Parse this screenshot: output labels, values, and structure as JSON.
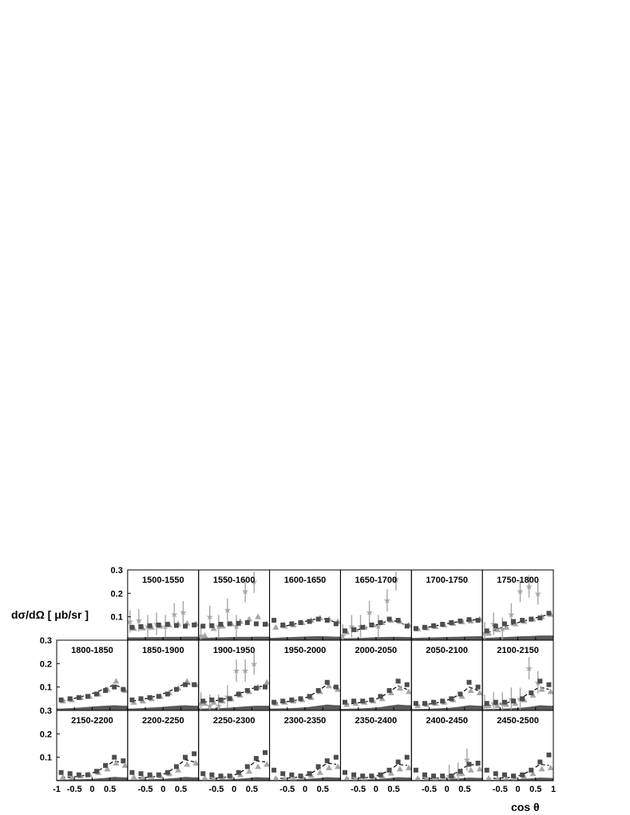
{
  "chart_data": {
    "type": "scatter",
    "xlabel": "cos θ",
    "ylabel": "dσ/dΩ [ μb/sr ]",
    "xlim": [
      -1,
      1
    ],
    "ylim": [
      0,
      0.3
    ],
    "x_ticks": [
      "-1",
      "-0.5",
      "0",
      "0.5",
      "1"
    ],
    "y_ticks": [
      "0.1",
      "0.2",
      "0.3"
    ],
    "x": [
      -0.875,
      -0.625,
      -0.375,
      -0.125,
      0.125,
      0.375,
      0.625,
      0.875
    ],
    "panels": [
      {
        "label": "1500-1550",
        "squares": [
          0.055,
          0.058,
          0.062,
          0.065,
          0.068,
          0.063,
          0.06,
          0.065
        ],
        "triangles": [
          0.05,
          0.052,
          0.055,
          0.06,
          0.065,
          0.07,
          0.072,
          0.07
        ],
        "stars": [
          0.08,
          0.085,
          0.06,
          0.07,
          0.06,
          0.11,
          0.12,
          0.0
        ],
        "band": [
          0.012,
          0.012,
          0.013,
          0.013,
          0.014,
          0.014,
          0.015,
          0.015
        ]
      },
      {
        "label": "1550-1600",
        "squares": [
          0.06,
          0.062,
          0.068,
          0.07,
          0.072,
          0.075,
          0.07,
          0.068
        ],
        "triangles": [
          0.02,
          0.05,
          0.06,
          0.07,
          0.08,
          0.09,
          0.1,
          0.07
        ],
        "stars": [
          0.02,
          0.1,
          0.06,
          0.13,
          0.06,
          0.21,
          0.25,
          0.0
        ],
        "band": [
          0.01,
          0.011,
          0.012,
          0.013,
          0.014,
          0.014,
          0.015,
          0.015
        ]
      },
      {
        "label": "1600-1650",
        "squares": [
          0.085,
          0.065,
          0.07,
          0.075,
          0.08,
          0.09,
          0.085,
          0.07
        ],
        "triangles": [
          0.055,
          0.06,
          0.065,
          0.075,
          0.085,
          0.095,
          0.09,
          0.08
        ],
        "band": [
          0.01,
          0.012,
          0.013,
          0.015,
          0.016,
          0.017,
          0.016,
          0.015
        ],
        "model": [
          0.05,
          0.058,
          0.066,
          0.075,
          0.085,
          0.092,
          0.09,
          0.075
        ]
      },
      {
        "label": "1650-1700",
        "squares": [
          0.04,
          0.045,
          0.055,
          0.065,
          0.075,
          0.09,
          0.085,
          0.06
        ],
        "triangles": [
          0.035,
          0.045,
          0.055,
          0.065,
          0.075,
          0.085,
          0.08,
          0.065
        ],
        "stars": [
          0.02,
          0.06,
          0.06,
          0.12,
          0.06,
          0.17,
          0.26,
          0.0
        ],
        "band": [
          0.008,
          0.009,
          0.01,
          0.012,
          0.013,
          0.014,
          0.014,
          0.013
        ],
        "model": [
          0.03,
          0.04,
          0.05,
          0.06,
          0.07,
          0.085,
          0.08,
          0.06
        ]
      },
      {
        "label": "1700-1750",
        "squares": [
          0.05,
          0.055,
          0.062,
          0.068,
          0.075,
          0.082,
          0.088,
          0.085
        ],
        "triangles": [
          0.048,
          0.052,
          0.058,
          0.065,
          0.072,
          0.078,
          0.082,
          0.09
        ],
        "band": [
          0.01,
          0.011,
          0.012,
          0.013,
          0.014,
          0.015,
          0.016,
          0.017
        ],
        "model": [
          0.045,
          0.052,
          0.06,
          0.067,
          0.074,
          0.08,
          0.085,
          0.088
        ]
      },
      {
        "label": "1750-1800",
        "squares": [
          0.04,
          0.06,
          0.07,
          0.08,
          0.085,
          0.09,
          0.095,
          0.115
        ],
        "triangles": [
          0.03,
          0.045,
          0.055,
          0.07,
          0.08,
          0.09,
          0.1,
          0.11
        ],
        "stars": [
          0.03,
          0.07,
          0.05,
          0.11,
          0.21,
          0.23,
          0.2,
          0.0
        ],
        "band": [
          0.01,
          0.012,
          0.013,
          0.015,
          0.017,
          0.018,
          0.02,
          0.02
        ],
        "model": [
          0.03,
          0.045,
          0.058,
          0.07,
          0.08,
          0.09,
          0.1,
          0.11
        ]
      },
      {
        "label": "1800-1850",
        "squares": [
          0.045,
          0.05,
          0.055,
          0.06,
          0.07,
          0.085,
          0.1,
          0.09
        ],
        "triangles": [
          0.04,
          0.045,
          0.055,
          0.06,
          0.07,
          0.09,
          0.125,
          0.085
        ],
        "band": [
          0.008,
          0.01,
          0.012,
          0.015,
          0.018,
          0.02,
          0.022,
          0.02
        ],
        "model": [
          0.04,
          0.048,
          0.056,
          0.066,
          0.078,
          0.095,
          0.11,
          0.095
        ]
      },
      {
        "label": "1850-1900",
        "squares": [
          0.045,
          0.05,
          0.055,
          0.06,
          0.07,
          0.09,
          0.11,
          0.11
        ],
        "triangles": [
          0.035,
          0.04,
          0.05,
          0.06,
          0.075,
          0.095,
          0.125,
          0.11
        ],
        "band": [
          0.008,
          0.01,
          0.012,
          0.014,
          0.017,
          0.02,
          0.022,
          0.02
        ],
        "model": [
          0.04,
          0.046,
          0.054,
          0.065,
          0.078,
          0.096,
          0.115,
          0.11
        ]
      },
      {
        "label": "1900-1950",
        "squares": [
          0.04,
          0.045,
          0.045,
          0.05,
          0.07,
          0.085,
          0.095,
          0.1
        ],
        "triangles": [
          0.03,
          0.035,
          0.04,
          0.05,
          0.065,
          0.08,
          0.1,
          0.12
        ],
        "stars": [
          0.03,
          0.02,
          0.02,
          0.06,
          0.17,
          0.17,
          0.2,
          0.0
        ],
        "band": [
          0.008,
          0.009,
          0.01,
          0.012,
          0.015,
          0.018,
          0.02,
          0.02
        ],
        "model": [
          0.035,
          0.04,
          0.045,
          0.055,
          0.07,
          0.085,
          0.1,
          0.105
        ]
      },
      {
        "label": "1950-2000",
        "squares": [
          0.035,
          0.04,
          0.045,
          0.05,
          0.06,
          0.085,
          0.12,
          0.1
        ],
        "triangles": [
          0.03,
          0.035,
          0.04,
          0.045,
          0.055,
          0.08,
          0.105,
          0.09
        ],
        "band": [
          0.008,
          0.009,
          0.01,
          0.012,
          0.015,
          0.02,
          0.025,
          0.022
        ],
        "model": [
          0.03,
          0.035,
          0.04,
          0.048,
          0.06,
          0.085,
          0.11,
          0.095
        ]
      },
      {
        "label": "2000-2050",
        "squares": [
          0.035,
          0.04,
          0.04,
          0.045,
          0.06,
          0.085,
          0.125,
          0.11
        ],
        "triangles": [
          0.025,
          0.03,
          0.035,
          0.04,
          0.05,
          0.075,
          0.095,
          0.08
        ],
        "band": [
          0.007,
          0.008,
          0.009,
          0.011,
          0.014,
          0.02,
          0.025,
          0.022
        ],
        "model": [
          0.025,
          0.03,
          0.035,
          0.042,
          0.055,
          0.08,
          0.105,
          0.09
        ]
      },
      {
        "label": "2050-2100",
        "squares": [
          0.03,
          0.03,
          0.035,
          0.04,
          0.05,
          0.07,
          0.12,
          0.1
        ],
        "triangles": [
          0.02,
          0.025,
          0.03,
          0.035,
          0.045,
          0.06,
          0.085,
          0.075
        ],
        "band": [
          0.006,
          0.007,
          0.008,
          0.01,
          0.012,
          0.016,
          0.022,
          0.02
        ],
        "model": [
          0.02,
          0.025,
          0.03,
          0.038,
          0.05,
          0.07,
          0.1,
          0.085
        ]
      },
      {
        "label": "2100-2150",
        "squares": [
          0.03,
          0.035,
          0.035,
          0.04,
          0.05,
          0.075,
          0.125,
          0.11
        ],
        "triangles": [
          0.02,
          0.02,
          0.025,
          0.03,
          0.045,
          0.065,
          0.09,
          0.08
        ],
        "stars": [
          0.02,
          0.03,
          0.03,
          0.05,
          0.05,
          0.18,
          0.12,
          0.0
        ],
        "band": [
          0.006,
          0.007,
          0.008,
          0.01,
          0.012,
          0.016,
          0.022,
          0.02
        ],
        "model": [
          0.02,
          0.025,
          0.03,
          0.04,
          0.055,
          0.08,
          0.1,
          0.09
        ]
      },
      {
        "label": "2150-2200",
        "squares": [
          0.035,
          0.03,
          0.025,
          0.025,
          0.04,
          0.065,
          0.1,
          0.085
        ],
        "triangles": [
          0.015,
          0.015,
          0.02,
          0.025,
          0.035,
          0.05,
          0.075,
          0.065
        ],
        "band": [
          0.004,
          0.005,
          0.006,
          0.007,
          0.009,
          0.012,
          0.016,
          0.014
        ],
        "model": [
          0.015,
          0.015,
          0.018,
          0.025,
          0.04,
          0.06,
          0.085,
          0.075
        ]
      },
      {
        "label": "2200-2250",
        "squares": [
          0.035,
          0.03,
          0.025,
          0.025,
          0.035,
          0.06,
          0.1,
          0.115
        ],
        "triangles": [
          0.015,
          0.015,
          0.018,
          0.02,
          0.03,
          0.045,
          0.07,
          0.075
        ],
        "band": [
          0.004,
          0.005,
          0.006,
          0.007,
          0.009,
          0.012,
          0.016,
          0.014
        ],
        "model": [
          0.012,
          0.012,
          0.015,
          0.02,
          0.035,
          0.06,
          0.09,
          0.08
        ]
      },
      {
        "label": "2250-2300",
        "squares": [
          0.03,
          0.025,
          0.02,
          0.02,
          0.035,
          0.06,
          0.095,
          0.12
        ],
        "triangles": [
          0.012,
          0.012,
          0.015,
          0.018,
          0.025,
          0.04,
          0.06,
          0.07
        ],
        "band": [
          0.004,
          0.004,
          0.005,
          0.006,
          0.008,
          0.011,
          0.015,
          0.013
        ],
        "model": [
          0.01,
          0.01,
          0.012,
          0.018,
          0.03,
          0.055,
          0.085,
          0.08
        ]
      },
      {
        "label": "2300-2350",
        "squares": [
          0.045,
          0.03,
          0.025,
          0.02,
          0.03,
          0.06,
          0.085,
          0.1
        ],
        "triangles": [
          0.01,
          0.01,
          0.012,
          0.015,
          0.022,
          0.035,
          0.055,
          0.06
        ],
        "band": [
          0.003,
          0.004,
          0.005,
          0.006,
          0.008,
          0.011,
          0.015,
          0.013
        ],
        "model": [
          0.01,
          0.01,
          0.012,
          0.016,
          0.028,
          0.05,
          0.075,
          0.07
        ]
      },
      {
        "label": "2350-2400",
        "squares": [
          0.035,
          0.025,
          0.02,
          0.02,
          0.025,
          0.045,
          0.08,
          0.1
        ],
        "triangles": [
          0.01,
          0.01,
          0.012,
          0.015,
          0.02,
          0.032,
          0.05,
          0.055
        ],
        "band": [
          0.003,
          0.004,
          0.005,
          0.006,
          0.008,
          0.011,
          0.015,
          0.013
        ],
        "model": [
          0.01,
          0.01,
          0.012,
          0.015,
          0.025,
          0.045,
          0.07,
          0.065
        ]
      },
      {
        "label": "2400-2450",
        "squares": [
          0.045,
          0.025,
          0.02,
          0.02,
          0.02,
          0.04,
          0.07,
          0.075
        ],
        "triangles": [
          0.01,
          0.01,
          0.01,
          0.012,
          0.018,
          0.03,
          0.045,
          0.05
        ],
        "stars": [
          0.0,
          0.0,
          0.0,
          0.0,
          0.02,
          0.03,
          0.09,
          0.0
        ],
        "band": [
          0.003,
          0.004,
          0.005,
          0.006,
          0.008,
          0.01,
          0.013,
          0.012
        ],
        "model": [
          0.01,
          0.01,
          0.01,
          0.012,
          0.022,
          0.045,
          0.07,
          0.065
        ]
      },
      {
        "label": "2450-2500",
        "squares": [
          0.045,
          0.03,
          0.025,
          0.02,
          0.025,
          0.045,
          0.08,
          0.11
        ],
        "triangles": [
          0.01,
          0.01,
          0.01,
          0.012,
          0.018,
          0.03,
          0.05,
          0.055
        ],
        "band": [
          0.003,
          0.004,
          0.005,
          0.006,
          0.008,
          0.01,
          0.013,
          0.012
        ],
        "model": [
          0.01,
          0.01,
          0.012,
          0.015,
          0.025,
          0.045,
          0.07,
          0.065
        ]
      }
    ],
    "colors": {
      "squares": "#4d4d4d",
      "triangles": "#a6a6a6",
      "stars": "#a6a6a6",
      "band": "#595959",
      "model": "#000000"
    },
    "grid": false
  }
}
